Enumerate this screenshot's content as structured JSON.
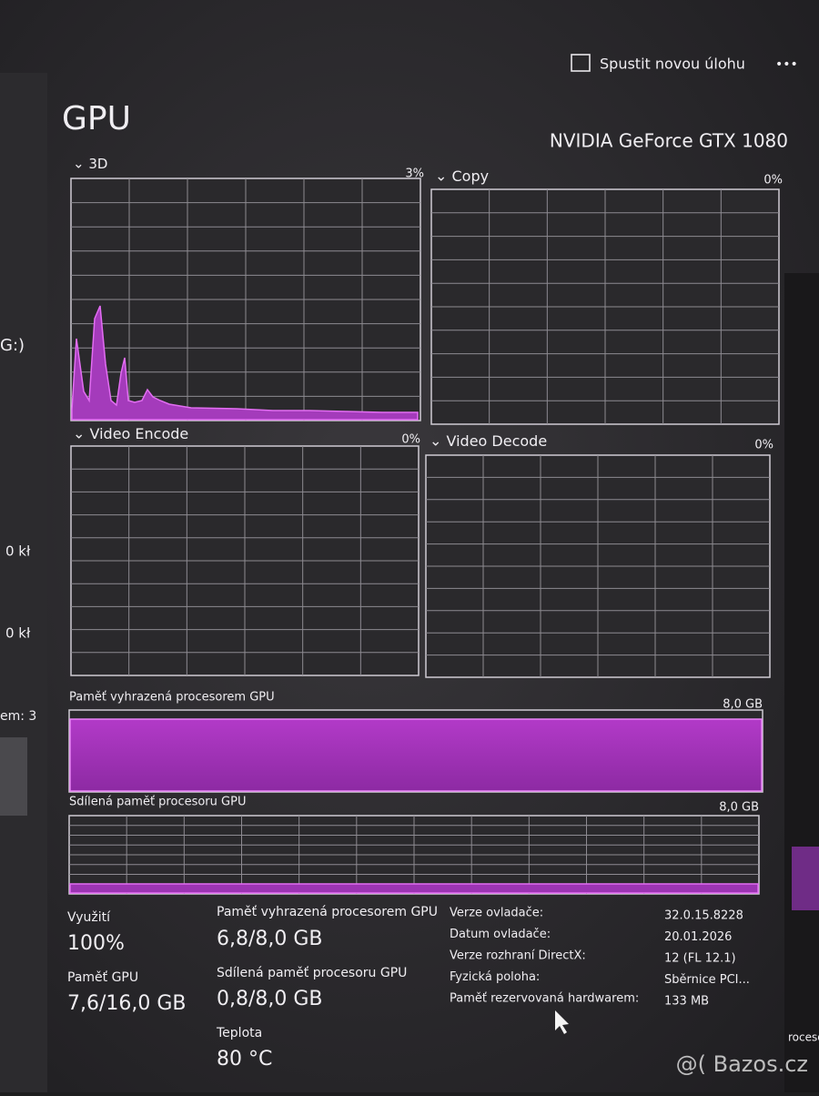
{
  "toolbar": {
    "new_task": "Spustit novou úlohu",
    "more": "•••"
  },
  "sidebar": {
    "items": [
      "G:)",
      "0 kł",
      "0 kł",
      "em: 3"
    ]
  },
  "header": {
    "title": "GPU",
    "device": "NVIDIA GeForce GTX 1080"
  },
  "graphs": [
    {
      "label": "3D",
      "percent": "3%"
    },
    {
      "label": "Copy",
      "percent": "0%"
    },
    {
      "label": "Video Encode",
      "percent": "0%"
    },
    {
      "label": "Video Decode",
      "percent": "0%"
    }
  ],
  "memory_graphs": [
    {
      "label": "Paměť vyhrazená procesorem GPU",
      "max": "8,0 GB"
    },
    {
      "label": "Sdílená paměť procesoru GPU",
      "max": "8,0 GB"
    }
  ],
  "stats": [
    {
      "label": "Využití",
      "value": "100%"
    },
    {
      "label": "Paměť GPU",
      "value": "7,6/16,0 GB"
    },
    {
      "label": "Paměť vyhrazená procesorem GPU",
      "value": "6,8/8,0 GB"
    },
    {
      "label": "Sdílená paměť procesoru GPU",
      "value": "0,8/8,0 GB"
    },
    {
      "label": "Teplota",
      "value": "80 °C"
    }
  ],
  "details": [
    {
      "label": "Verze ovladače:",
      "value": "32.0.15.8228"
    },
    {
      "label": "Datum ovladače:",
      "value": "20.01.2026"
    },
    {
      "label": "Verze rozhraní DirectX:",
      "value": "12 (FL 12.1)"
    },
    {
      "label": "Fyzická poloha:",
      "value": "Sběrnice PCI..."
    },
    {
      "label": "Paměť rezervovaná hardwarem:",
      "value": "133 MB"
    }
  ],
  "edge_text": "rocesor",
  "watermark": "@( Bazos.cz"
}
